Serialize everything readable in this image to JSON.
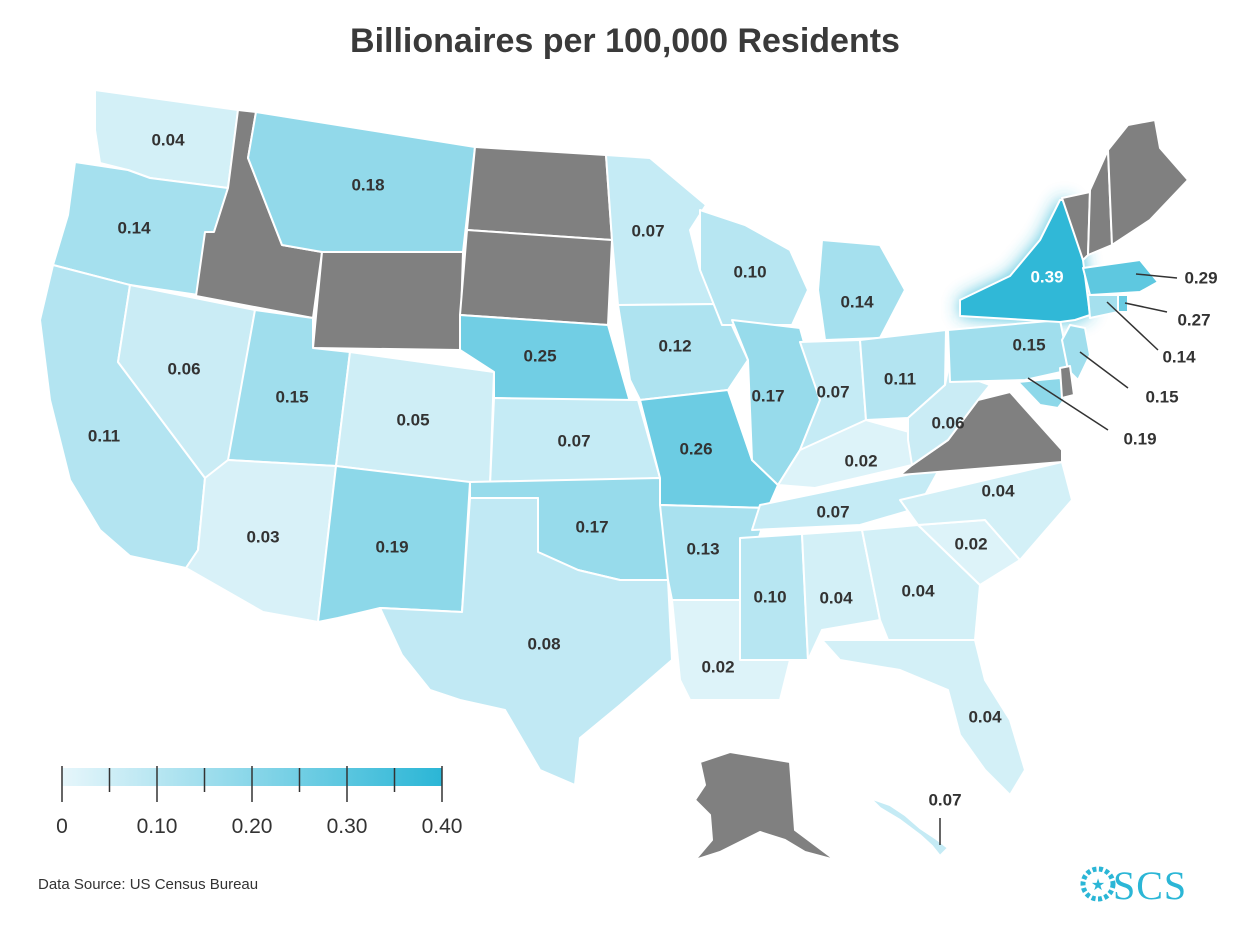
{
  "title": "Billionaires per 100,000 Residents",
  "source": "Data Source: US Census Bureau",
  "brand": "SCS",
  "colors": {
    "scale_low": "#e6f6fb",
    "scale_high": "#2bb6d6",
    "no_data": "#808080",
    "text": "#333333"
  },
  "legend": {
    "min": 0,
    "max": 0.4,
    "tick_labels": [
      "0",
      "0.10",
      "0.20",
      "0.30",
      "0.40"
    ]
  },
  "states": [
    {
      "id": "WA",
      "value": 0.04,
      "label": "0.04"
    },
    {
      "id": "OR",
      "value": 0.14,
      "label": "0.14"
    },
    {
      "id": "CA",
      "value": 0.11,
      "label": "0.11"
    },
    {
      "id": "NV",
      "value": 0.06,
      "label": "0.06"
    },
    {
      "id": "ID",
      "value": null,
      "label": ""
    },
    {
      "id": "MT",
      "value": 0.18,
      "label": "0.18"
    },
    {
      "id": "WY",
      "value": null,
      "label": ""
    },
    {
      "id": "UT",
      "value": 0.15,
      "label": "0.15"
    },
    {
      "id": "AZ",
      "value": 0.03,
      "label": "0.03"
    },
    {
      "id": "CO",
      "value": 0.05,
      "label": "0.05"
    },
    {
      "id": "NM",
      "value": 0.19,
      "label": "0.19"
    },
    {
      "id": "ND",
      "value": null,
      "label": ""
    },
    {
      "id": "SD",
      "value": null,
      "label": ""
    },
    {
      "id": "NE",
      "value": 0.25,
      "label": "0.25"
    },
    {
      "id": "KS",
      "value": 0.07,
      "label": "0.07"
    },
    {
      "id": "OK",
      "value": 0.17,
      "label": "0.17"
    },
    {
      "id": "TX",
      "value": 0.08,
      "label": "0.08"
    },
    {
      "id": "MN",
      "value": 0.07,
      "label": "0.07"
    },
    {
      "id": "IA",
      "value": 0.12,
      "label": "0.12"
    },
    {
      "id": "MO",
      "value": 0.26,
      "label": "0.26"
    },
    {
      "id": "AR",
      "value": 0.13,
      "label": "0.13"
    },
    {
      "id": "LA",
      "value": 0.02,
      "label": "0.02"
    },
    {
      "id": "WI",
      "value": 0.1,
      "label": "0.10"
    },
    {
      "id": "IL",
      "value": 0.17,
      "label": "0.17"
    },
    {
      "id": "MI",
      "value": 0.14,
      "label": "0.14"
    },
    {
      "id": "IN",
      "value": 0.07,
      "label": "0.07"
    },
    {
      "id": "OH",
      "value": 0.11,
      "label": "0.11"
    },
    {
      "id": "KY",
      "value": 0.02,
      "label": "0.02"
    },
    {
      "id": "TN",
      "value": 0.07,
      "label": "0.07"
    },
    {
      "id": "MS",
      "value": 0.1,
      "label": "0.10"
    },
    {
      "id": "AL",
      "value": 0.04,
      "label": "0.04"
    },
    {
      "id": "GA",
      "value": 0.04,
      "label": "0.04"
    },
    {
      "id": "FL",
      "value": 0.04,
      "label": "0.04"
    },
    {
      "id": "SC",
      "value": 0.02,
      "label": "0.02"
    },
    {
      "id": "NC",
      "value": 0.04,
      "label": "0.04"
    },
    {
      "id": "VA",
      "value": null,
      "label": ""
    },
    {
      "id": "WV",
      "value": 0.06,
      "label": "0.06"
    },
    {
      "id": "PA",
      "value": 0.15,
      "label": "0.15"
    },
    {
      "id": "NY",
      "value": 0.39,
      "label": "0.39"
    },
    {
      "id": "VT",
      "value": null,
      "label": ""
    },
    {
      "id": "NH",
      "value": null,
      "label": ""
    },
    {
      "id": "ME",
      "value": null,
      "label": ""
    },
    {
      "id": "MA",
      "value": 0.29,
      "label": "0.29"
    },
    {
      "id": "RI",
      "value": 0.27,
      "label": "0.27"
    },
    {
      "id": "CT",
      "value": 0.14,
      "label": "0.14"
    },
    {
      "id": "NJ",
      "value": 0.15,
      "label": "0.15"
    },
    {
      "id": "MD",
      "value": 0.19,
      "label": "0.19"
    },
    {
      "id": "DE",
      "value": null,
      "label": ""
    },
    {
      "id": "AK",
      "value": null,
      "label": ""
    },
    {
      "id": "HI",
      "value": 0.07,
      "label": "0.07"
    }
  ]
}
